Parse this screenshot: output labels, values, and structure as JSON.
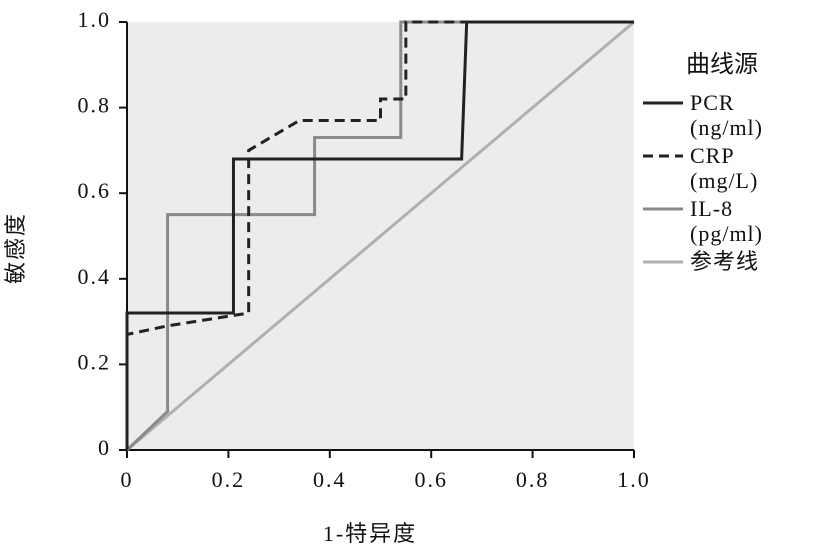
{
  "chart_data": {
    "type": "line",
    "x_label": "1-特异度",
    "y_label": "敏感度",
    "legend_title": "曲线源",
    "legend": "right",
    "background": "#ececec",
    "xlim": [
      0,
      1
    ],
    "ylim": [
      0,
      1
    ],
    "xticks": [
      0,
      0.2,
      0.4,
      0.6,
      0.8,
      {
        "value": 1,
        "label": "1.0"
      }
    ],
    "yticks": [
      0,
      0.2,
      0.4,
      0.6,
      0.8,
      {
        "value": 1,
        "label": "1.0"
      }
    ],
    "series": [
      {
        "name": "PCR (ng/ml)",
        "color": "#222222",
        "line_style": "solid",
        "x": [
          0,
          0,
          0.21,
          0.21,
          0.66,
          0.67,
          1
        ],
        "values": [
          0,
          0.32,
          0.32,
          0.68,
          0.68,
          1,
          1
        ]
      },
      {
        "name": "CRP (mg/L)",
        "color": "#222222",
        "line_style": "dashed",
        "x": [
          0,
          0,
          0.08,
          0.24,
          0.24,
          0.34,
          0.5,
          0.5,
          0.55,
          0.55,
          1
        ],
        "values": [
          0,
          0.27,
          0.29,
          0.32,
          0.7,
          0.77,
          0.77,
          0.82,
          0.82,
          1,
          1
        ]
      },
      {
        "name": "IL-8 (pg/ml)",
        "color": "#8a8a8a",
        "line_style": "solid",
        "x": [
          0,
          0.08,
          0.08,
          0.37,
          0.37,
          0.54,
          0.54,
          1
        ],
        "values": [
          0,
          0.09,
          0.55,
          0.55,
          0.73,
          0.73,
          1,
          1
        ]
      },
      {
        "name": "参考线",
        "color": "#b0b0b0",
        "line_style": "solid",
        "x": [
          0,
          1
        ],
        "values": [
          0,
          1
        ]
      }
    ]
  }
}
